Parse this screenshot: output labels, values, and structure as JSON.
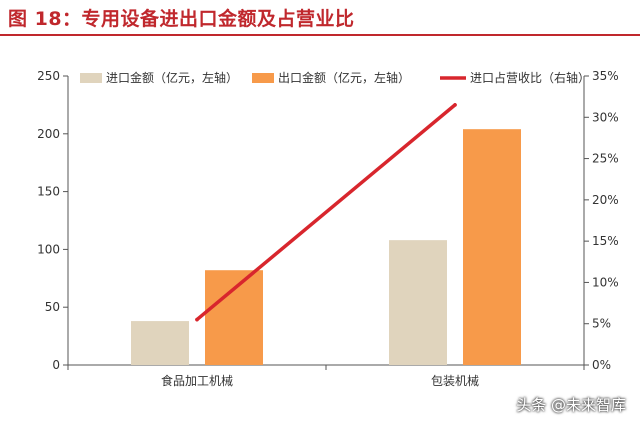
{
  "header": {
    "title": "图 18：专用设备进出口金额及占营业比"
  },
  "watermark": "头条 @未来智库",
  "chart_data": {
    "type": "bar",
    "categories": [
      "食品加工机械",
      "包装机械"
    ],
    "series": [
      {
        "name": "进口金额（亿元，左轴）",
        "kind": "bar",
        "axis": "left",
        "color": "#e0d4bd",
        "values": [
          38,
          108
        ]
      },
      {
        "name": "出口金额（亿元，左轴）",
        "kind": "bar",
        "axis": "left",
        "color": "#f79a4a",
        "values": [
          82,
          204
        ]
      },
      {
        "name": "进口占营收比（右轴）",
        "kind": "line",
        "axis": "right",
        "color": "#d8262d",
        "values": [
          5.5,
          31.5
        ]
      }
    ],
    "y_left": {
      "min": 0,
      "max": 250,
      "ticks": [
        "0",
        "50",
        "100",
        "150",
        "200",
        "250"
      ]
    },
    "y_right": {
      "min": 0,
      "max": 35,
      "ticks": [
        "0%",
        "5%",
        "10%",
        "15%",
        "20%",
        "25%",
        "30%",
        "35%"
      ]
    },
    "legend_position": "top",
    "grid": false
  }
}
